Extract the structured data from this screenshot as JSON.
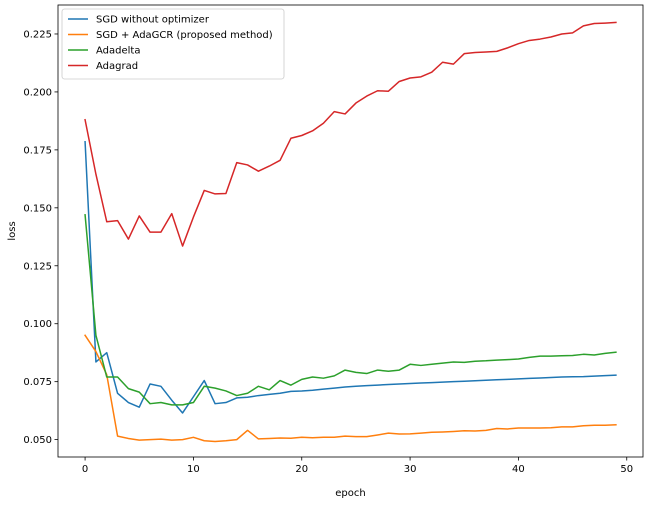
{
  "chart_data": {
    "type": "line",
    "title": "",
    "xlabel": "epoch",
    "ylabel": "loss",
    "xlim": [
      -2.5,
      51.5
    ],
    "ylim": [
      0.0425,
      0.2375
    ],
    "xticks": [
      0,
      10,
      20,
      30,
      40,
      50
    ],
    "xtick_labels": [
      "0",
      "10",
      "20",
      "30",
      "40",
      "50"
    ],
    "yticks": [
      0.05,
      0.075,
      0.1,
      0.125,
      0.15,
      0.175,
      0.2,
      0.225
    ],
    "ytick_labels": [
      "0.050",
      "0.075",
      "0.100",
      "0.125",
      "0.150",
      "0.175",
      "0.200",
      "0.225"
    ],
    "grid": false,
    "legend_position": "top-left",
    "x": [
      0,
      1,
      2,
      3,
      4,
      5,
      6,
      7,
      8,
      9,
      10,
      11,
      12,
      13,
      14,
      15,
      16,
      17,
      18,
      19,
      20,
      21,
      22,
      23,
      24,
      25,
      26,
      27,
      28,
      29,
      30,
      31,
      32,
      33,
      34,
      35,
      36,
      37,
      38,
      39,
      40,
      41,
      42,
      43,
      44,
      45,
      46,
      47,
      48,
      49
    ],
    "series": [
      {
        "name": "SGD without optimizer",
        "color": "#1f77b4",
        "values": [
          0.1785,
          0.0835,
          0.0875,
          0.07,
          0.066,
          0.064,
          0.074,
          0.073,
          0.067,
          0.0615,
          0.0685,
          0.0755,
          0.0655,
          0.066,
          0.068,
          0.0683,
          0.069,
          0.0695,
          0.07,
          0.0708,
          0.071,
          0.0713,
          0.0718,
          0.0722,
          0.0727,
          0.073,
          0.0733,
          0.0735,
          0.0738,
          0.074,
          0.0742,
          0.0744,
          0.0746,
          0.0748,
          0.075,
          0.0752,
          0.0754,
          0.0756,
          0.0758,
          0.076,
          0.0762,
          0.0764,
          0.0766,
          0.0768,
          0.077,
          0.0771,
          0.0772,
          0.0774,
          0.0776,
          0.0778
        ]
      },
      {
        "name": "SGD + AdaGCR (proposed method)",
        "color": "#ff7f0e",
        "values": [
          0.095,
          0.088,
          0.078,
          0.0515,
          0.0505,
          0.0498,
          0.05,
          0.0502,
          0.0498,
          0.05,
          0.051,
          0.0495,
          0.0492,
          0.0495,
          0.05,
          0.054,
          0.0503,
          0.0505,
          0.0507,
          0.0506,
          0.051,
          0.0508,
          0.051,
          0.051,
          0.0515,
          0.0513,
          0.0513,
          0.052,
          0.0528,
          0.0524,
          0.0525,
          0.0528,
          0.0532,
          0.0533,
          0.0535,
          0.0538,
          0.0537,
          0.054,
          0.0548,
          0.0546,
          0.055,
          0.055,
          0.055,
          0.0551,
          0.0555,
          0.0555,
          0.056,
          0.0562,
          0.0562,
          0.0564
        ]
      },
      {
        "name": "Adadelta",
        "color": "#2ca02c",
        "values": [
          0.147,
          0.095,
          0.077,
          0.077,
          0.072,
          0.0705,
          0.0655,
          0.066,
          0.065,
          0.065,
          0.066,
          0.073,
          0.0722,
          0.071,
          0.069,
          0.07,
          0.073,
          0.0715,
          0.0755,
          0.0735,
          0.076,
          0.077,
          0.0765,
          0.0775,
          0.08,
          0.079,
          0.0785,
          0.08,
          0.0795,
          0.08,
          0.0825,
          0.082,
          0.0825,
          0.083,
          0.0835,
          0.0833,
          0.0838,
          0.084,
          0.0843,
          0.0845,
          0.0848,
          0.0855,
          0.086,
          0.086,
          0.0862,
          0.0863,
          0.0868,
          0.0865,
          0.0872,
          0.0877
        ]
      },
      {
        "name": "Adagrad",
        "color": "#d62728",
        "values": [
          0.188,
          0.1645,
          0.144,
          0.1445,
          0.1365,
          0.1465,
          0.1395,
          0.1395,
          0.1475,
          0.1335,
          0.146,
          0.1575,
          0.156,
          0.1562,
          0.1695,
          0.1685,
          0.1658,
          0.168,
          0.1705,
          0.18,
          0.1812,
          0.1832,
          0.1865,
          0.1915,
          0.1905,
          0.1952,
          0.1982,
          0.2005,
          0.2003,
          0.2045,
          0.206,
          0.2065,
          0.2085,
          0.2128,
          0.212,
          0.2165,
          0.217,
          0.2172,
          0.2175,
          0.219,
          0.2208,
          0.2222,
          0.2228,
          0.2237,
          0.225,
          0.2255,
          0.2285,
          0.2295,
          0.2297,
          0.23
        ]
      }
    ]
  }
}
